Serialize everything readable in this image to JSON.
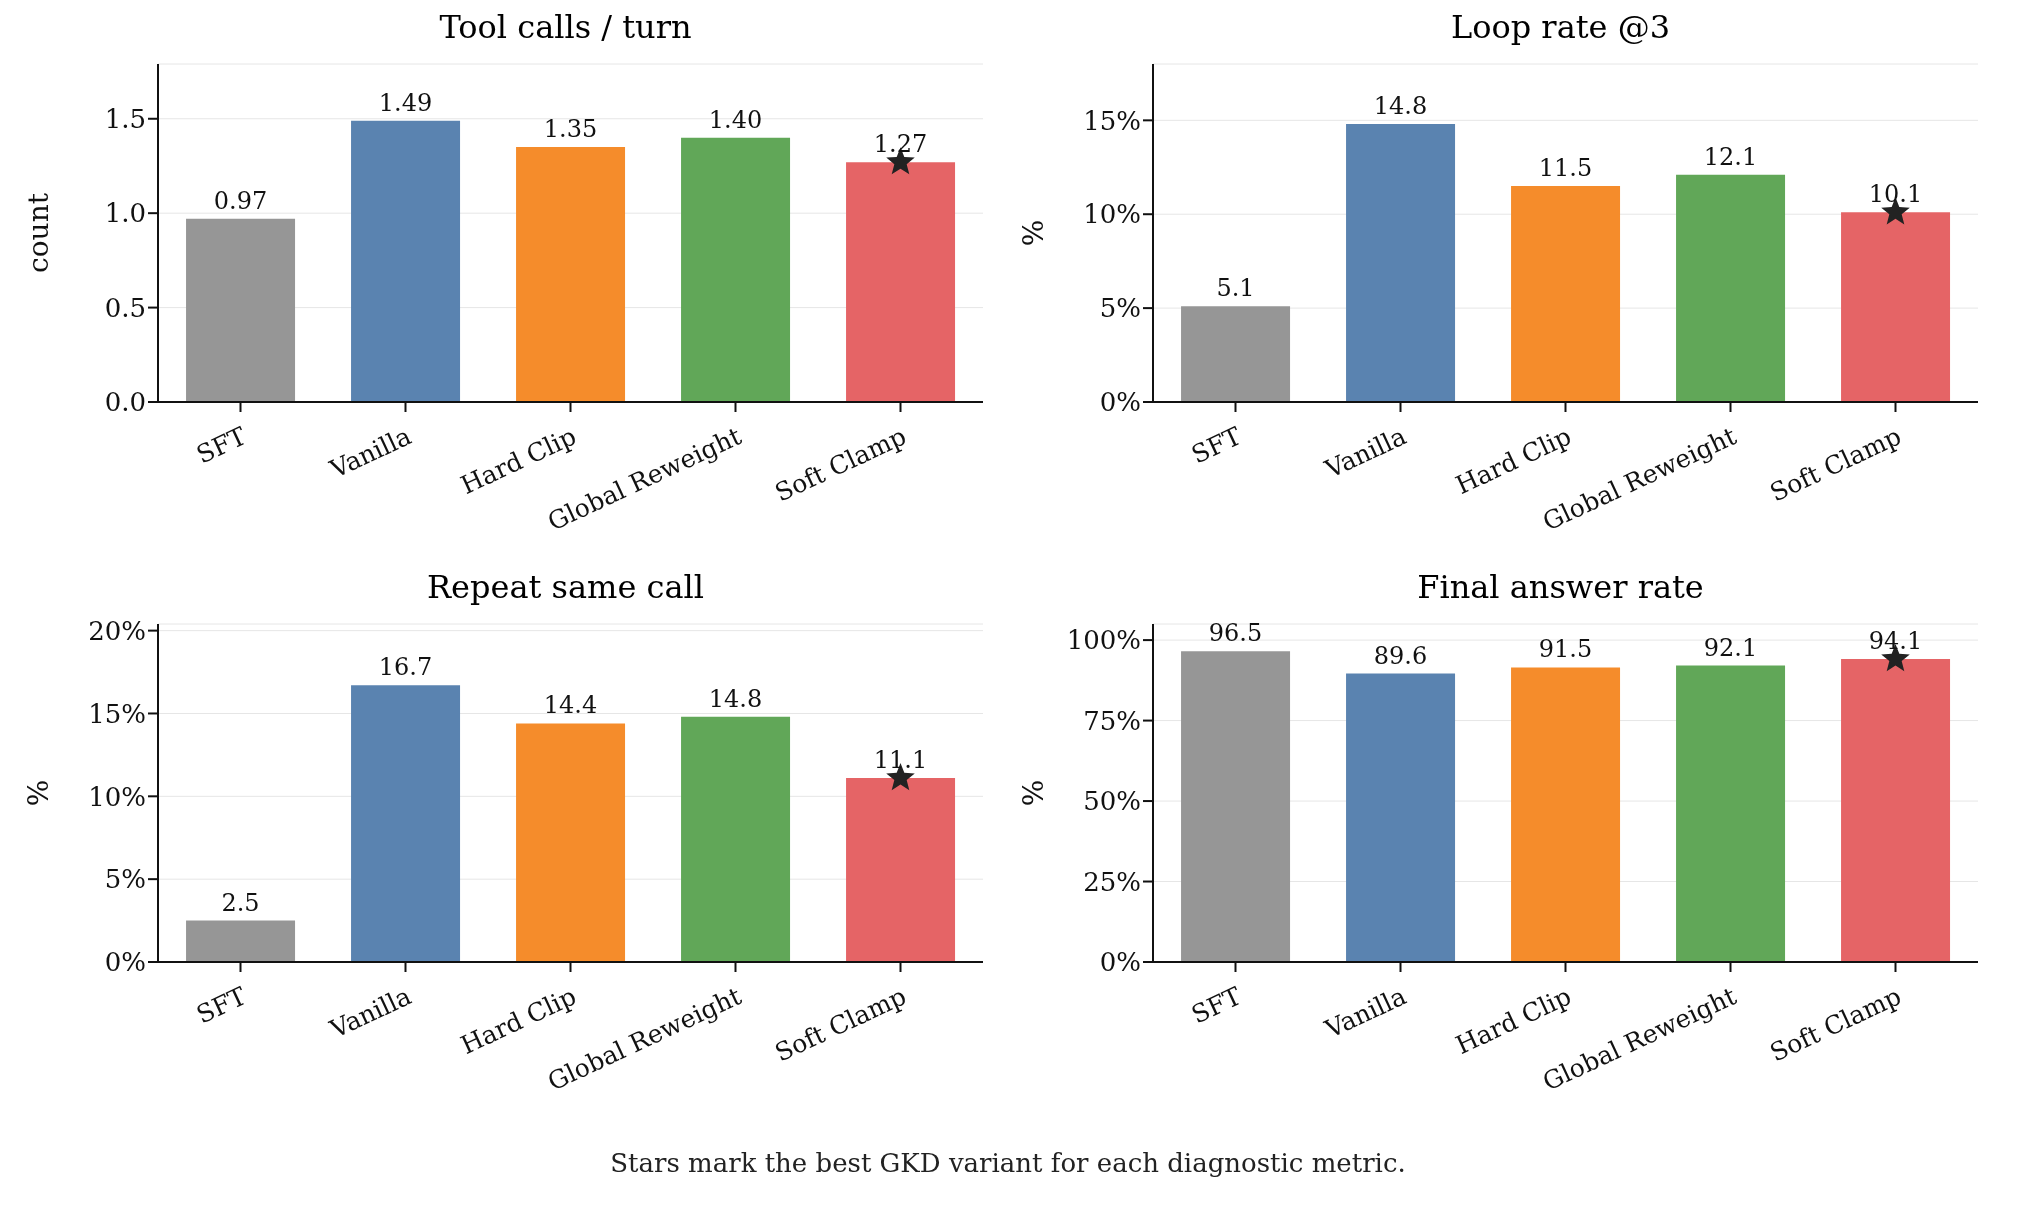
{
  "chart_data": [
    {
      "type": "bar",
      "title": "Tool calls / turn",
      "ylabel": "count",
      "categories": [
        "SFT",
        "Vanilla",
        "Hard Clip",
        "Global Reweight",
        "Soft Clamp"
      ],
      "ylim": [
        0,
        1.79
      ],
      "yticks": [
        {
          "value": 0,
          "label": "0.0"
        },
        0.5,
        {
          "value": 1,
          "label": "1.0"
        },
        1.5
      ],
      "grid": "y",
      "legend": false,
      "series": [
        {
          "colors": [
            "#969696",
            "#5a83b0",
            "#f58c2b",
            "#61a758",
            "#e56466"
          ],
          "values": [
            0.97,
            1.49,
            1.35,
            1.4,
            1.27
          ],
          "value_labels": [
            "0.97",
            "1.49",
            "1.35",
            "1.40",
            "1.27"
          ]
        },
        {
          "type": "scatter",
          "x": [
            "Soft Clamp"
          ],
          "values": [
            1.27
          ],
          "color": "#222222",
          "marker": "star"
        }
      ]
    },
    {
      "type": "bar",
      "title": "Loop rate @3",
      "ylabel": "%",
      "categories": [
        "SFT",
        "Vanilla",
        "Hard Clip",
        "Global Reweight",
        "Soft Clamp"
      ],
      "ylim": [
        0,
        18
      ],
      "yticks": [
        {
          "value": 0,
          "label": "0%"
        },
        {
          "value": 5,
          "label": "5%"
        },
        {
          "value": 10,
          "label": "10%"
        },
        {
          "value": 15,
          "label": "15%"
        }
      ],
      "grid": "y",
      "legend": false,
      "series": [
        {
          "colors": [
            "#969696",
            "#5a83b0",
            "#f58c2b",
            "#61a758",
            "#e56466"
          ],
          "values": [
            5.1,
            14.8,
            11.5,
            12.1,
            10.1
          ],
          "value_labels": [
            "5.1",
            "14.8",
            "11.5",
            "12.1",
            "10.1"
          ]
        },
        {
          "type": "scatter",
          "x": [
            "Soft Clamp"
          ],
          "values": [
            10.1
          ],
          "color": "#222222",
          "marker": "star"
        }
      ]
    },
    {
      "type": "bar",
      "title": "Repeat same call",
      "ylabel": "%",
      "categories": [
        "SFT",
        "Vanilla",
        "Hard Clip",
        "Global Reweight",
        "Soft Clamp"
      ],
      "ylim": [
        0,
        20.4
      ],
      "yticks": [
        {
          "value": 0,
          "label": "0%"
        },
        {
          "value": 5,
          "label": "5%"
        },
        {
          "value": 10,
          "label": "10%"
        },
        {
          "value": 15,
          "label": "15%"
        },
        {
          "value": 20,
          "label": "20%"
        }
      ],
      "grid": "y",
      "legend": false,
      "series": [
        {
          "colors": [
            "#969696",
            "#5a83b0",
            "#f58c2b",
            "#61a758",
            "#e56466"
          ],
          "values": [
            2.5,
            16.7,
            14.4,
            14.8,
            11.1
          ],
          "value_labels": [
            "2.5",
            "16.7",
            "14.4",
            "14.8",
            "11.1"
          ]
        },
        {
          "type": "scatter",
          "x": [
            "Soft Clamp"
          ],
          "values": [
            11.1
          ],
          "color": "#222222",
          "marker": "star"
        }
      ]
    },
    {
      "type": "bar",
      "title": "Final answer rate",
      "ylabel": "%",
      "categories": [
        "SFT",
        "Vanilla",
        "Hard Clip",
        "Global Reweight",
        "Soft Clamp"
      ],
      "ylim": [
        0,
        105
      ],
      "yticks": [
        {
          "value": 0,
          "label": "0%"
        },
        {
          "value": 25,
          "label": "25%"
        },
        {
          "value": 50,
          "label": "50%"
        },
        {
          "value": 75,
          "label": "75%"
        },
        {
          "value": 100,
          "label": "100%"
        }
      ],
      "grid": "y",
      "legend": false,
      "annotations": [
        "Stars mark the best GKD variant for each diagnostic metric."
      ],
      "series": [
        {
          "colors": [
            "#969696",
            "#5a83b0",
            "#f58c2b",
            "#61a758",
            "#e56466"
          ],
          "values": [
            96.5,
            89.6,
            91.5,
            92.1,
            94.1
          ],
          "value_labels": [
            "96.5",
            "89.6",
            "91.5",
            "92.1",
            "94.1"
          ]
        },
        {
          "type": "scatter",
          "x": [
            "Soft Clamp"
          ],
          "values": [
            94.1
          ],
          "color": "#222222",
          "marker": "star"
        }
      ]
    }
  ]
}
